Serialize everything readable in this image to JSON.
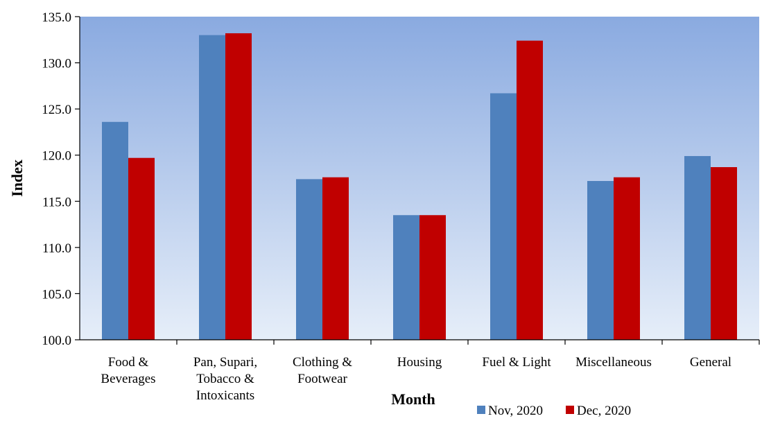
{
  "chart_data": {
    "type": "bar",
    "title": "",
    "xlabel": "Month",
    "ylabel": "Index",
    "ylim": [
      100,
      135
    ],
    "yticks": [
      "100.0",
      "105.0",
      "110.0",
      "115.0",
      "120.0",
      "125.0",
      "130.0",
      "135.0"
    ],
    "categories": [
      [
        "Food &",
        "Beverages"
      ],
      [
        "Pan, Supari,",
        "Tobacco &",
        "Intoxicants"
      ],
      [
        "Clothing &",
        "Footwear"
      ],
      [
        "Housing"
      ],
      [
        "Fuel & Light"
      ],
      [
        "Miscellaneous"
      ],
      [
        "General"
      ]
    ],
    "series": [
      {
        "name": "Nov, 2020",
        "color": "#4F81BD",
        "values": [
          123.6,
          133.0,
          117.4,
          113.5,
          126.7,
          117.2,
          119.9
        ]
      },
      {
        "name": "Dec, 2020",
        "color": "#C00000",
        "values": [
          119.7,
          133.2,
          117.6,
          113.5,
          132.4,
          117.6,
          118.7
        ]
      }
    ],
    "grid": false,
    "legend_position": "bottom-right",
    "background_gradient": [
      "#8AAAE0",
      "#E6EEF9"
    ]
  }
}
